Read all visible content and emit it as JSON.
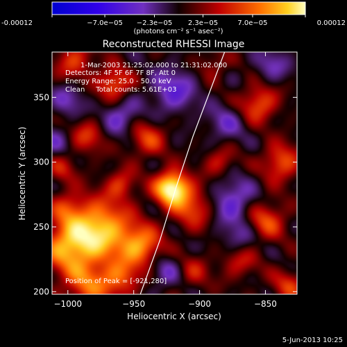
{
  "chart_data": {
    "type": "heatmap",
    "title": "Reconstructed RHESSI Image",
    "xlabel": "Heliocentric X (arcsec)",
    "ylabel": "Heliocentric Y (arcsec)",
    "xlim": [
      -1012,
      -826
    ],
    "ylim": [
      198,
      385
    ],
    "x_ticks": [
      -1000,
      -950,
      -900,
      -850
    ],
    "x_tick_labels": [
      "−1000",
      "−950",
      "−900",
      "−850"
    ],
    "y_ticks": [
      200,
      250,
      300,
      350
    ],
    "y_tick_labels": [
      "200",
      "250",
      "300",
      "350"
    ],
    "colorbar": {
      "range": [
        -0.00012,
        0.00012
      ],
      "tick_values": [
        -0.00012,
        -7e-05,
        -2.3e-05,
        2.3e-05,
        7e-05,
        0.00012
      ],
      "tick_labels": [
        "-0.00012",
        "−7.0e−05",
        "−2.3e−05",
        "2.3e−05",
        "7.0e−05",
        "0.00012"
      ],
      "units_label": "(photons cm⁻² s⁻¹ asec⁻²)"
    },
    "annotations": [
      "1-Mar-2003 21:25:02.000 to 21:31:02.000",
      "Detectors: 4F 5F 6F 7F 8F, Att 0",
      "Energy Range: 25.0 - 50.0 keV",
      "Clean     Total counts: 5.61E+03"
    ],
    "peak_label": "Position of Peak = [-921,280]",
    "peak": [
      -921,
      280
    ],
    "limb_points": [
      [
        -945,
        198
      ],
      [
        -930,
        240
      ],
      [
        -918,
        280
      ],
      [
        -905,
        320
      ],
      [
        -892,
        355
      ],
      [
        -881,
        385
      ]
    ],
    "sources": [
      {
        "x": -921,
        "y": 280,
        "amp": 1.25,
        "sigma": 9
      },
      {
        "x": -975,
        "y": 248,
        "amp": 0.95,
        "sigma": 16
      },
      {
        "x": -1000,
        "y": 235,
        "amp": 0.8,
        "sigma": 14
      },
      {
        "x": -945,
        "y": 235,
        "amp": 0.75,
        "sigma": 11
      },
      {
        "x": -985,
        "y": 205,
        "amp": 0.6,
        "sigma": 13
      },
      {
        "x": -960,
        "y": 210,
        "amp": 0.55,
        "sigma": 10
      },
      {
        "x": -905,
        "y": 265,
        "amp": 0.55,
        "sigma": 11
      },
      {
        "x": -965,
        "y": 360,
        "amp": 0.65,
        "sigma": 9
      },
      {
        "x": -995,
        "y": 378,
        "amp": 0.5,
        "sigma": 10
      },
      {
        "x": -940,
        "y": 318,
        "amp": 0.5,
        "sigma": 10
      },
      {
        "x": -985,
        "y": 320,
        "amp": 0.45,
        "sigma": 9
      },
      {
        "x": -855,
        "y": 345,
        "amp": 0.6,
        "sigma": 10
      },
      {
        "x": -838,
        "y": 300,
        "amp": 0.6,
        "sigma": 10
      },
      {
        "x": -850,
        "y": 255,
        "amp": 0.55,
        "sigma": 11
      },
      {
        "x": -870,
        "y": 225,
        "amp": 0.45,
        "sigma": 10
      },
      {
        "x": -832,
        "y": 205,
        "amp": 0.45,
        "sigma": 9
      },
      {
        "x": -885,
        "y": 300,
        "amp": 0.4,
        "sigma": 8
      },
      {
        "x": -905,
        "y": 215,
        "amp": 0.35,
        "sigma": 9
      },
      {
        "x": -1005,
        "y": 295,
        "amp": 0.35,
        "sigma": 8
      },
      {
        "x": -890,
        "y": 375,
        "amp": 0.3,
        "sigma": 8
      },
      {
        "x": -960,
        "y": 283,
        "amp": 0.45,
        "sigma": 8
      },
      {
        "x": -1000,
        "y": 265,
        "amp": 0.4,
        "sigma": 9
      },
      {
        "x": -960,
        "y": 335,
        "amp": -0.45,
        "sigma": 10
      },
      {
        "x": -920,
        "y": 355,
        "amp": -0.5,
        "sigma": 12
      },
      {
        "x": -875,
        "y": 270,
        "amp": -0.5,
        "sigma": 12
      },
      {
        "x": -880,
        "y": 330,
        "amp": -0.35,
        "sigma": 10
      },
      {
        "x": -1000,
        "y": 348,
        "amp": -0.35,
        "sigma": 9
      },
      {
        "x": -870,
        "y": 240,
        "amp": -0.4,
        "sigma": 10
      },
      {
        "x": -925,
        "y": 215,
        "amp": -0.35,
        "sigma": 9
      },
      {
        "x": -845,
        "y": 375,
        "amp": -0.35,
        "sigma": 9
      },
      {
        "x": -1010,
        "y": 315,
        "amp": -0.3,
        "sigma": 8
      }
    ]
  },
  "footer": {
    "date_stamp": "5-Jun-2013 10:25"
  }
}
